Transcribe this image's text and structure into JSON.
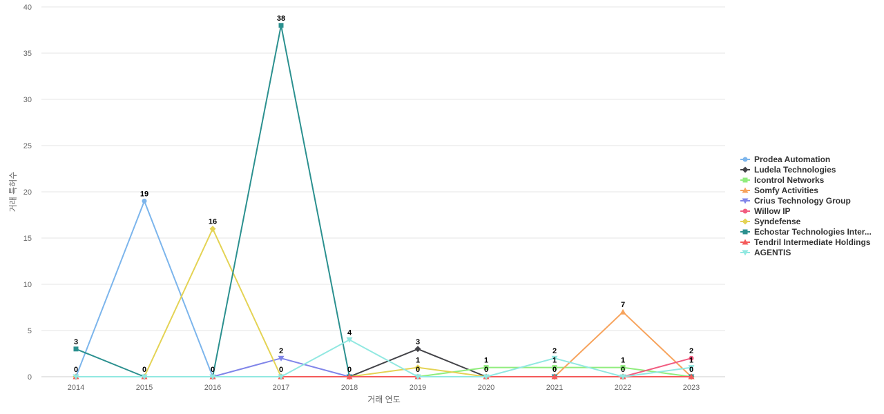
{
  "chart_data": {
    "type": "line",
    "title": "",
    "xlabel": "거래 연도",
    "ylabel": "거래 특허수",
    "ylim": [
      0,
      40
    ],
    "yticks": [
      0,
      5,
      10,
      15,
      20,
      25,
      30,
      35,
      40
    ],
    "grid": true,
    "legend_position": "right",
    "categories": [
      "2014",
      "2015",
      "2016",
      "2017",
      "2018",
      "2019",
      "2020",
      "2021",
      "2022",
      "2023"
    ],
    "series": [
      {
        "name": "Prodea Automation",
        "color": "#7cb5ec",
        "marker": "circle",
        "values": [
          0,
          19,
          0,
          0,
          0,
          0,
          0,
          0,
          0,
          0
        ]
      },
      {
        "name": "Ludela Technologies",
        "color": "#434348",
        "marker": "diamond",
        "values": [
          0,
          0,
          0,
          0,
          0,
          3,
          0,
          0,
          0,
          0
        ]
      },
      {
        "name": "Icontrol Networks",
        "color": "#90ed7d",
        "marker": "square",
        "values": [
          0,
          0,
          0,
          0,
          0,
          0,
          1,
          1,
          1,
          0
        ]
      },
      {
        "name": "Somfy Activities",
        "color": "#f7a35c",
        "marker": "triangle",
        "values": [
          0,
          0,
          0,
          0,
          0,
          0,
          0,
          0,
          7,
          0
        ]
      },
      {
        "name": "Crius Technology Group",
        "color": "#8085e9",
        "marker": "triangle-down",
        "values": [
          0,
          0,
          0,
          2,
          0,
          0,
          0,
          0,
          0,
          0
        ]
      },
      {
        "name": "Willow IP",
        "color": "#f15c80",
        "marker": "circle",
        "values": [
          0,
          0,
          0,
          0,
          0,
          0,
          0,
          0,
          0,
          2
        ]
      },
      {
        "name": "Syndefense",
        "color": "#e4d354",
        "marker": "diamond",
        "values": [
          0,
          0,
          16,
          0,
          0,
          1,
          0,
          0,
          0,
          0
        ]
      },
      {
        "name": "Echostar Technologies Inter...",
        "color": "#2b908f",
        "marker": "square",
        "values": [
          3,
          0,
          0,
          38,
          0,
          0,
          0,
          0,
          0,
          0
        ]
      },
      {
        "name": "Tendril Intermediate Holdings",
        "color": "#f45b5b",
        "marker": "triangle",
        "values": [
          0,
          0,
          0,
          0,
          0,
          0,
          0,
          0,
          0,
          0
        ]
      },
      {
        "name": "AGENTIS",
        "color": "#91e8e1",
        "marker": "triangle-down",
        "values": [
          0,
          0,
          0,
          0,
          4,
          0,
          0,
          2,
          0,
          1
        ]
      }
    ],
    "data_labels": [
      {
        "category": "2014",
        "series": "Echostar Technologies Inter...",
        "text": "3"
      },
      {
        "category": "2014",
        "series": "Tendril Intermediate Holdings",
        "text": "0"
      },
      {
        "category": "2015",
        "series": "Prodea Automation",
        "text": "19"
      },
      {
        "category": "2015",
        "series": "Tendril Intermediate Holdings",
        "text": "0"
      },
      {
        "category": "2016",
        "series": "Syndefense",
        "text": "16"
      },
      {
        "category": "2016",
        "series": "Tendril Intermediate Holdings",
        "text": "0"
      },
      {
        "category": "2017",
        "series": "Echostar Technologies Inter...",
        "text": "38"
      },
      {
        "category": "2017",
        "series": "Crius Technology Group",
        "text": "2"
      },
      {
        "category": "2017",
        "series": "Tendril Intermediate Holdings",
        "text": "0"
      },
      {
        "category": "2018",
        "series": "AGENTIS",
        "text": "4"
      },
      {
        "category": "2018",
        "series": "Tendril Intermediate Holdings",
        "text": "0"
      },
      {
        "category": "2019",
        "series": "Ludela Technologies",
        "text": "3"
      },
      {
        "category": "2019",
        "series": "Syndefense",
        "text": "1"
      },
      {
        "category": "2019",
        "series": "Tendril Intermediate Holdings",
        "text": "0"
      },
      {
        "category": "2020",
        "series": "Icontrol Networks",
        "text": "1"
      },
      {
        "category": "2020",
        "series": "Tendril Intermediate Holdings",
        "text": "0"
      },
      {
        "category": "2021",
        "series": "AGENTIS",
        "text": "2"
      },
      {
        "category": "2021",
        "series": "Icontrol Networks",
        "text": "1"
      },
      {
        "category": "2021",
        "series": "Tendril Intermediate Holdings",
        "text": "0"
      },
      {
        "category": "2022",
        "series": "Somfy Activities",
        "text": "7"
      },
      {
        "category": "2022",
        "series": "Icontrol Networks",
        "text": "1"
      },
      {
        "category": "2022",
        "series": "Tendril Intermediate Holdings",
        "text": "0"
      },
      {
        "category": "2023",
        "series": "Willow IP",
        "text": "2"
      },
      {
        "category": "2023",
        "series": "AGENTIS",
        "text": "1"
      },
      {
        "category": "2023",
        "series": "Tendril Intermediate Holdings",
        "text": "0"
      }
    ]
  }
}
